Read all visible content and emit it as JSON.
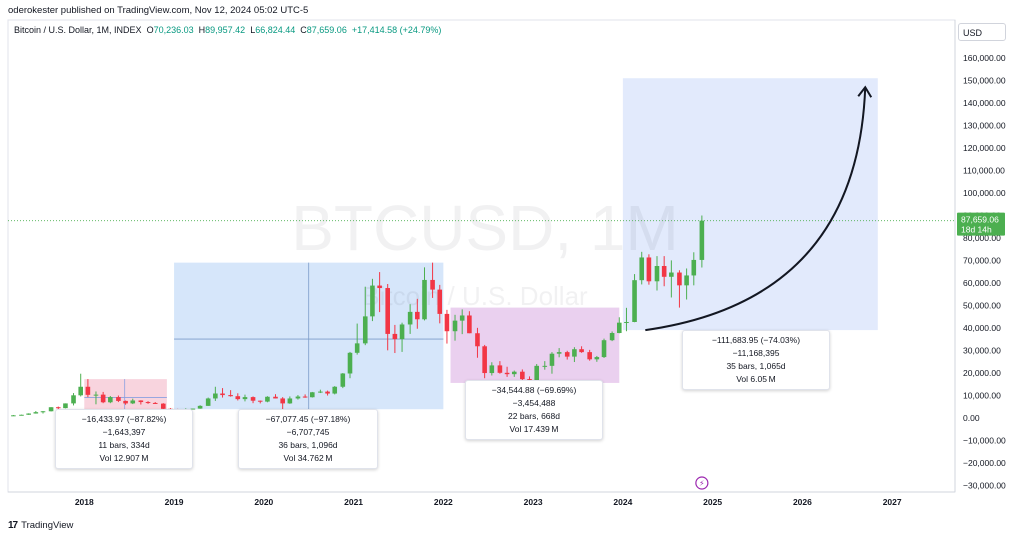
{
  "header": {
    "publisher_line": "oderokester published on TradingView.com, Nov 12, 2024 05:02 UTC-5",
    "symbol_desc": "Bitcoin / U.S. Dollar, 1M, INDEX",
    "o_label": "O",
    "o_value": "70,236.03",
    "h_label": "H",
    "h_value": "89,957.42",
    "l_label": "L",
    "l_value": "66,824.44",
    "c_label": "C",
    "c_value": "87,659.06",
    "change": "+17,414.58 (+24.79%)",
    "currency": "USD"
  },
  "footer": {
    "logo_text": "17",
    "brand": "TradingView"
  },
  "colors": {
    "up": "#4caf50",
    "down": "#f23645",
    "blue_zone": "#cfe2f9",
    "pink_zone": "#f7cdd8",
    "purple_zone": "#e6c8ec",
    "projection_zone": "#dde6fb",
    "price_label_bg": "#4caf50"
  },
  "chart_data": {
    "type": "candlestick",
    "title": "",
    "symbol": "BTCUSD, 1M",
    "watermark_main": "BTCUSD, 1M",
    "watermark_sub": "Bitcoin / U.S. Dollar",
    "x_ticks": [
      "2018",
      "2019",
      "2020",
      "2021",
      "2022",
      "2023",
      "2024",
      "2025",
      "2026",
      "2027"
    ],
    "y_ticks": [
      "160,000.00",
      "150,000.00",
      "140,000.00",
      "130,000.00",
      "120,000.00",
      "110,000.00",
      "100,000.00",
      "90,000.00",
      "80,000.00",
      "70,000.00",
      "60,000.00",
      "50,000.00",
      "40,000.00",
      "30,000.00",
      "20,000.00",
      "10,000.00",
      "0.00",
      "−10,000.00",
      "−20,000.00",
      "−30,000.00"
    ],
    "y_tick_values": [
      160000,
      150000,
      140000,
      130000,
      120000,
      110000,
      100000,
      90000,
      80000,
      70000,
      60000,
      50000,
      40000,
      30000,
      20000,
      10000,
      0,
      -10000,
      -20000,
      -30000
    ],
    "ylim": [
      -33000,
      168000
    ],
    "xlim": [
      2017.15,
      2027.7
    ],
    "current_price_label": "87,659.06",
    "countdown_label": "18d 14h",
    "current_price": 87659.06,
    "candles": [
      {
        "t": 2017.21,
        "o": 1000,
        "h": 1250,
        "l": 900,
        "c": 1100
      },
      {
        "t": 2017.3,
        "o": 1100,
        "h": 1400,
        "l": 1000,
        "c": 1350
      },
      {
        "t": 2017.38,
        "o": 1350,
        "h": 2000,
        "l": 1300,
        "c": 1900
      },
      {
        "t": 2017.46,
        "o": 1900,
        "h": 3000,
        "l": 1850,
        "c": 2500
      },
      {
        "t": 2017.54,
        "o": 2500,
        "h": 3000,
        "l": 1900,
        "c": 2900
      },
      {
        "t": 2017.63,
        "o": 2900,
        "h": 4700,
        "l": 2800,
        "c": 4700
      },
      {
        "t": 2017.71,
        "o": 4700,
        "h": 5000,
        "l": 3000,
        "c": 4300
      },
      {
        "t": 2017.79,
        "o": 4300,
        "h": 6400,
        "l": 4200,
        "c": 6400
      },
      {
        "t": 2017.88,
        "o": 6400,
        "h": 11000,
        "l": 5500,
        "c": 10000
      },
      {
        "t": 2017.96,
        "o": 10000,
        "h": 19600,
        "l": 9500,
        "c": 13800
      },
      {
        "t": 2018.04,
        "o": 13800,
        "h": 17200,
        "l": 9200,
        "c": 10200
      },
      {
        "t": 2018.13,
        "o": 10200,
        "h": 11700,
        "l": 6000,
        "c": 10300
      },
      {
        "t": 2018.21,
        "o": 10300,
        "h": 11500,
        "l": 6500,
        "c": 6900
      },
      {
        "t": 2018.29,
        "o": 6900,
        "h": 9700,
        "l": 6500,
        "c": 9200
      },
      {
        "t": 2018.38,
        "o": 9200,
        "h": 9900,
        "l": 7000,
        "c": 7500
      },
      {
        "t": 2018.46,
        "o": 7500,
        "h": 7700,
        "l": 5800,
        "c": 6400
      },
      {
        "t": 2018.54,
        "o": 6400,
        "h": 8500,
        "l": 6100,
        "c": 7700
      },
      {
        "t": 2018.63,
        "o": 7700,
        "h": 7800,
        "l": 5900,
        "c": 7000
      },
      {
        "t": 2018.71,
        "o": 7000,
        "h": 7400,
        "l": 6200,
        "c": 6600
      },
      {
        "t": 2018.79,
        "o": 6600,
        "h": 7000,
        "l": 6200,
        "c": 6300
      },
      {
        "t": 2018.88,
        "o": 6300,
        "h": 6500,
        "l": 3500,
        "c": 4000
      },
      {
        "t": 2018.96,
        "o": 4000,
        "h": 4300,
        "l": 3200,
        "c": 3700
      },
      {
        "t": 2019.04,
        "o": 3700,
        "h": 4000,
        "l": 3350,
        "c": 3450
      },
      {
        "t": 2019.13,
        "o": 3450,
        "h": 4200,
        "l": 3350,
        "c": 3800
      },
      {
        "t": 2019.21,
        "o": 3800,
        "h": 4100,
        "l": 3700,
        "c": 4100
      },
      {
        "t": 2019.29,
        "o": 4100,
        "h": 5600,
        "l": 4000,
        "c": 5300
      },
      {
        "t": 2019.38,
        "o": 5300,
        "h": 9000,
        "l": 5300,
        "c": 8600
      },
      {
        "t": 2019.46,
        "o": 8600,
        "h": 13800,
        "l": 7500,
        "c": 10800
      },
      {
        "t": 2019.54,
        "o": 10800,
        "h": 13200,
        "l": 9000,
        "c": 10100
      },
      {
        "t": 2019.63,
        "o": 10100,
        "h": 12300,
        "l": 9400,
        "c": 9600
      },
      {
        "t": 2019.71,
        "o": 9600,
        "h": 10900,
        "l": 7700,
        "c": 8300
      },
      {
        "t": 2019.79,
        "o": 8300,
        "h": 10300,
        "l": 7300,
        "c": 9200
      },
      {
        "t": 2019.88,
        "o": 9200,
        "h": 9500,
        "l": 6500,
        "c": 7600
      },
      {
        "t": 2019.96,
        "o": 7600,
        "h": 7700,
        "l": 6400,
        "c": 7200
      },
      {
        "t": 2020.04,
        "o": 7200,
        "h": 9600,
        "l": 6900,
        "c": 9350
      },
      {
        "t": 2020.13,
        "o": 9350,
        "h": 10500,
        "l": 8600,
        "c": 8600
      },
      {
        "t": 2020.21,
        "o": 8600,
        "h": 9200,
        "l": 3800,
        "c": 6400
      },
      {
        "t": 2020.29,
        "o": 6400,
        "h": 9500,
        "l": 6200,
        "c": 8600
      },
      {
        "t": 2020.38,
        "o": 8600,
        "h": 10100,
        "l": 8100,
        "c": 9450
      },
      {
        "t": 2020.46,
        "o": 9450,
        "h": 10400,
        "l": 8900,
        "c": 9140
      },
      {
        "t": 2020.54,
        "o": 9140,
        "h": 11500,
        "l": 9000,
        "c": 11350
      },
      {
        "t": 2020.63,
        "o": 11350,
        "h": 12500,
        "l": 11000,
        "c": 11650
      },
      {
        "t": 2020.71,
        "o": 11650,
        "h": 12100,
        "l": 9900,
        "c": 10780
      },
      {
        "t": 2020.79,
        "o": 10780,
        "h": 14100,
        "l": 10400,
        "c": 13800
      },
      {
        "t": 2020.88,
        "o": 13800,
        "h": 19900,
        "l": 13200,
        "c": 19700
      },
      {
        "t": 2020.96,
        "o": 19700,
        "h": 29300,
        "l": 17600,
        "c": 28900
      },
      {
        "t": 2021.04,
        "o": 28900,
        "h": 41900,
        "l": 28100,
        "c": 33100
      },
      {
        "t": 2021.13,
        "o": 33100,
        "h": 58300,
        "l": 32300,
        "c": 45100
      },
      {
        "t": 2021.21,
        "o": 45100,
        "h": 61800,
        "l": 43000,
        "c": 58800
      },
      {
        "t": 2021.29,
        "o": 58800,
        "h": 64800,
        "l": 47000,
        "c": 57700
      },
      {
        "t": 2021.38,
        "o": 57700,
        "h": 59500,
        "l": 30000,
        "c": 37300
      },
      {
        "t": 2021.46,
        "o": 37300,
        "h": 41300,
        "l": 28800,
        "c": 35000
      },
      {
        "t": 2021.54,
        "o": 35000,
        "h": 42300,
        "l": 29300,
        "c": 41500
      },
      {
        "t": 2021.63,
        "o": 41500,
        "h": 50500,
        "l": 37300,
        "c": 47100
      },
      {
        "t": 2021.71,
        "o": 47100,
        "h": 52900,
        "l": 39600,
        "c": 43800
      },
      {
        "t": 2021.79,
        "o": 43800,
        "h": 66900,
        "l": 43300,
        "c": 61300
      },
      {
        "t": 2021.88,
        "o": 61300,
        "h": 69000,
        "l": 53300,
        "c": 57000
      },
      {
        "t": 2021.96,
        "o": 57000,
        "h": 59100,
        "l": 42000,
        "c": 46200
      },
      {
        "t": 2022.04,
        "o": 46200,
        "h": 48000,
        "l": 33000,
        "c": 38500
      },
      {
        "t": 2022.13,
        "o": 38500,
        "h": 45800,
        "l": 34300,
        "c": 43200
      },
      {
        "t": 2022.21,
        "o": 43200,
        "h": 48200,
        "l": 37200,
        "c": 45500
      },
      {
        "t": 2022.29,
        "o": 45500,
        "h": 47400,
        "l": 37600,
        "c": 37600
      },
      {
        "t": 2022.38,
        "o": 37600,
        "h": 40000,
        "l": 26700,
        "c": 31800
      },
      {
        "t": 2022.46,
        "o": 31800,
        "h": 32400,
        "l": 17600,
        "c": 19900
      },
      {
        "t": 2022.54,
        "o": 19900,
        "h": 24700,
        "l": 18800,
        "c": 23300
      },
      {
        "t": 2022.63,
        "o": 23300,
        "h": 25200,
        "l": 19600,
        "c": 20000
      },
      {
        "t": 2022.71,
        "o": 20000,
        "h": 22700,
        "l": 18200,
        "c": 19400
      },
      {
        "t": 2022.79,
        "o": 19400,
        "h": 21000,
        "l": 18200,
        "c": 20500
      },
      {
        "t": 2022.88,
        "o": 20500,
        "h": 21500,
        "l": 15500,
        "c": 17200
      },
      {
        "t": 2022.96,
        "o": 17200,
        "h": 18400,
        "l": 16300,
        "c": 16500
      },
      {
        "t": 2023.04,
        "o": 16500,
        "h": 23900,
        "l": 16500,
        "c": 23100
      },
      {
        "t": 2023.13,
        "o": 23100,
        "h": 25200,
        "l": 21400,
        "c": 23100
      },
      {
        "t": 2023.21,
        "o": 23100,
        "h": 29200,
        "l": 19600,
        "c": 28500
      },
      {
        "t": 2023.29,
        "o": 28500,
        "h": 31000,
        "l": 26900,
        "c": 29200
      },
      {
        "t": 2023.38,
        "o": 29200,
        "h": 29800,
        "l": 25900,
        "c": 27200
      },
      {
        "t": 2023.46,
        "o": 27200,
        "h": 31400,
        "l": 24800,
        "c": 30500
      },
      {
        "t": 2023.54,
        "o": 30500,
        "h": 31800,
        "l": 28900,
        "c": 29200
      },
      {
        "t": 2023.63,
        "o": 29200,
        "h": 30200,
        "l": 25400,
        "c": 26000
      },
      {
        "t": 2023.71,
        "o": 26000,
        "h": 27500,
        "l": 24900,
        "c": 27000
      },
      {
        "t": 2023.79,
        "o": 27000,
        "h": 35200,
        "l": 26600,
        "c": 34500
      },
      {
        "t": 2023.88,
        "o": 34500,
        "h": 38400,
        "l": 34100,
        "c": 37700
      },
      {
        "t": 2023.96,
        "o": 37700,
        "h": 44700,
        "l": 37600,
        "c": 42300
      },
      {
        "t": 2024.04,
        "o": 42300,
        "h": 48900,
        "l": 38500,
        "c": 42600
      },
      {
        "t": 2024.13,
        "o": 42600,
        "h": 63900,
        "l": 42500,
        "c": 61200
      },
      {
        "t": 2024.21,
        "o": 61200,
        "h": 73800,
        "l": 59300,
        "c": 71300
      },
      {
        "t": 2024.29,
        "o": 71300,
        "h": 72700,
        "l": 59200,
        "c": 60700
      },
      {
        "t": 2024.38,
        "o": 60700,
        "h": 71900,
        "l": 56600,
        "c": 67500
      },
      {
        "t": 2024.46,
        "o": 67500,
        "h": 71900,
        "l": 58500,
        "c": 62700
      },
      {
        "t": 2024.54,
        "o": 62700,
        "h": 70000,
        "l": 53500,
        "c": 64600
      },
      {
        "t": 2024.63,
        "o": 64600,
        "h": 65600,
        "l": 49000,
        "c": 58900
      },
      {
        "t": 2024.71,
        "o": 58900,
        "h": 66400,
        "l": 52600,
        "c": 63300
      },
      {
        "t": 2024.79,
        "o": 63300,
        "h": 73600,
        "l": 58900,
        "c": 70200
      },
      {
        "t": 2024.88,
        "o": 70200,
        "h": 89957,
        "l": 66824,
        "c": 87659
      }
    ],
    "zones": [
      {
        "kind": "pink",
        "t0": 2018.0,
        "t1": 2018.92,
        "y0": 3200,
        "y1": 17200
      },
      {
        "kind": "blue",
        "t0": 2019.0,
        "t1": 2022.0,
        "y0": 3800,
        "y1": 69000
      },
      {
        "kind": "purple",
        "t0": 2022.08,
        "t1": 2023.96,
        "y0": 15500,
        "y1": 49000
      },
      {
        "kind": "projection",
        "t0": 2024.0,
        "t1": 2026.84,
        "y0": 39000,
        "y1": 151000
      }
    ],
    "measurements": [
      {
        "line1": "−16,433.97 (−87.82%) −1,643,397",
        "line2": "11 bars, 334d",
        "line3": "Vol 12.907 M"
      },
      {
        "line1": "−67,077.45 (−97.18%) −6,707,745",
        "line2": "36 bars, 1,096d",
        "line3": "Vol 34.762 M"
      },
      {
        "line1": "−34,544.88 (−69.69%) −3,454,488",
        "line2": "22 bars, 668d",
        "line3": "Vol 17.439 M"
      },
      {
        "line1": "−111,683.95 (−74.03%) −11,168,395",
        "line2": "35 bars, 1,065d",
        "line3": "Vol 6.05 M"
      }
    ],
    "projection_arrow": {
      "t0": 2024.25,
      "y0": 39000,
      "t1": 2026.7,
      "y1": 147000
    }
  }
}
